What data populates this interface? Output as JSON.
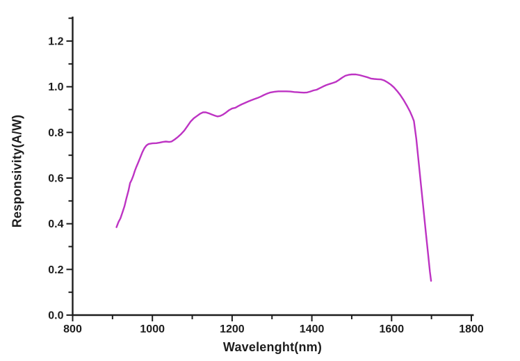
{
  "chart_data": {
    "type": "line",
    "title": "",
    "xlabel": "Wavelenght(nm)",
    "ylabel": "Responsivity(A/W)",
    "xlim": [
      800,
      1806
    ],
    "ylim": [
      0,
      1.307
    ],
    "x_major_ticks": [
      800,
      1000,
      1200,
      1400,
      1600,
      1800
    ],
    "x_minor_ticks": [
      900,
      1100,
      1300,
      1500,
      1700
    ],
    "y_major_ticks": [
      0.0,
      0.2,
      0.4,
      0.6,
      0.8,
      1.0,
      1.2
    ],
    "y_minor_ticks": [
      0.1,
      0.3,
      0.5,
      0.7,
      0.9,
      1.1,
      1.3
    ],
    "grid": false,
    "legend": "none",
    "background": "#ffffff",
    "axis_color": "#1c1c1c",
    "series": [
      {
        "name": "responsivity",
        "color": "#bd33c3",
        "points": [
          [
            910,
            0.385
          ],
          [
            915,
            0.408
          ],
          [
            920,
            0.424
          ],
          [
            925,
            0.45
          ],
          [
            930,
            0.477
          ],
          [
            935,
            0.512
          ],
          [
            940,
            0.545
          ],
          [
            944,
            0.578
          ],
          [
            948,
            0.592
          ],
          [
            952,
            0.61
          ],
          [
            956,
            0.632
          ],
          [
            960,
            0.65
          ],
          [
            965,
            0.67
          ],
          [
            970,
            0.692
          ],
          [
            975,
            0.714
          ],
          [
            980,
            0.731
          ],
          [
            985,
            0.743
          ],
          [
            990,
            0.749
          ],
          [
            1000,
            0.752
          ],
          [
            1010,
            0.753
          ],
          [
            1018,
            0.755
          ],
          [
            1026,
            0.758
          ],
          [
            1034,
            0.76
          ],
          [
            1042,
            0.758
          ],
          [
            1048,
            0.76
          ],
          [
            1056,
            0.769
          ],
          [
            1064,
            0.78
          ],
          [
            1072,
            0.793
          ],
          [
            1080,
            0.808
          ],
          [
            1088,
            0.828
          ],
          [
            1096,
            0.848
          ],
          [
            1104,
            0.862
          ],
          [
            1112,
            0.872
          ],
          [
            1120,
            0.882
          ],
          [
            1127,
            0.888
          ],
          [
            1134,
            0.888
          ],
          [
            1141,
            0.884
          ],
          [
            1148,
            0.879
          ],
          [
            1156,
            0.874
          ],
          [
            1163,
            0.87
          ],
          [
            1170,
            0.872
          ],
          [
            1177,
            0.878
          ],
          [
            1184,
            0.886
          ],
          [
            1192,
            0.897
          ],
          [
            1200,
            0.905
          ],
          [
            1208,
            0.908
          ],
          [
            1216,
            0.916
          ],
          [
            1224,
            0.923
          ],
          [
            1232,
            0.929
          ],
          [
            1240,
            0.935
          ],
          [
            1248,
            0.941
          ],
          [
            1256,
            0.946
          ],
          [
            1264,
            0.951
          ],
          [
            1272,
            0.957
          ],
          [
            1280,
            0.964
          ],
          [
            1288,
            0.97
          ],
          [
            1296,
            0.975
          ],
          [
            1306,
            0.978
          ],
          [
            1316,
            0.98
          ],
          [
            1326,
            0.98
          ],
          [
            1336,
            0.98
          ],
          [
            1346,
            0.979
          ],
          [
            1356,
            0.977
          ],
          [
            1364,
            0.976
          ],
          [
            1372,
            0.975
          ],
          [
            1380,
            0.974
          ],
          [
            1388,
            0.975
          ],
          [
            1396,
            0.979
          ],
          [
            1404,
            0.984
          ],
          [
            1412,
            0.987
          ],
          [
            1420,
            0.994
          ],
          [
            1428,
            1.001
          ],
          [
            1436,
            1.007
          ],
          [
            1444,
            1.012
          ],
          [
            1452,
            1.016
          ],
          [
            1460,
            1.021
          ],
          [
            1468,
            1.03
          ],
          [
            1476,
            1.04
          ],
          [
            1484,
            1.048
          ],
          [
            1492,
            1.052
          ],
          [
            1500,
            1.054
          ],
          [
            1510,
            1.054
          ],
          [
            1520,
            1.051
          ],
          [
            1530,
            1.046
          ],
          [
            1540,
            1.041
          ],
          [
            1548,
            1.036
          ],
          [
            1556,
            1.034
          ],
          [
            1565,
            1.033
          ],
          [
            1574,
            1.032
          ],
          [
            1582,
            1.027
          ],
          [
            1590,
            1.019
          ],
          [
            1598,
            1.009
          ],
          [
            1606,
            0.997
          ],
          [
            1614,
            0.981
          ],
          [
            1622,
            0.963
          ],
          [
            1630,
            0.942
          ],
          [
            1638,
            0.918
          ],
          [
            1646,
            0.892
          ],
          [
            1652,
            0.868
          ],
          [
            1656,
            0.85
          ],
          [
            1662,
            0.77
          ],
          [
            1668,
            0.668
          ],
          [
            1674,
            0.566
          ],
          [
            1680,
            0.462
          ],
          [
            1686,
            0.36
          ],
          [
            1692,
            0.258
          ],
          [
            1696,
            0.19
          ],
          [
            1699,
            0.15
          ]
        ]
      }
    ]
  }
}
